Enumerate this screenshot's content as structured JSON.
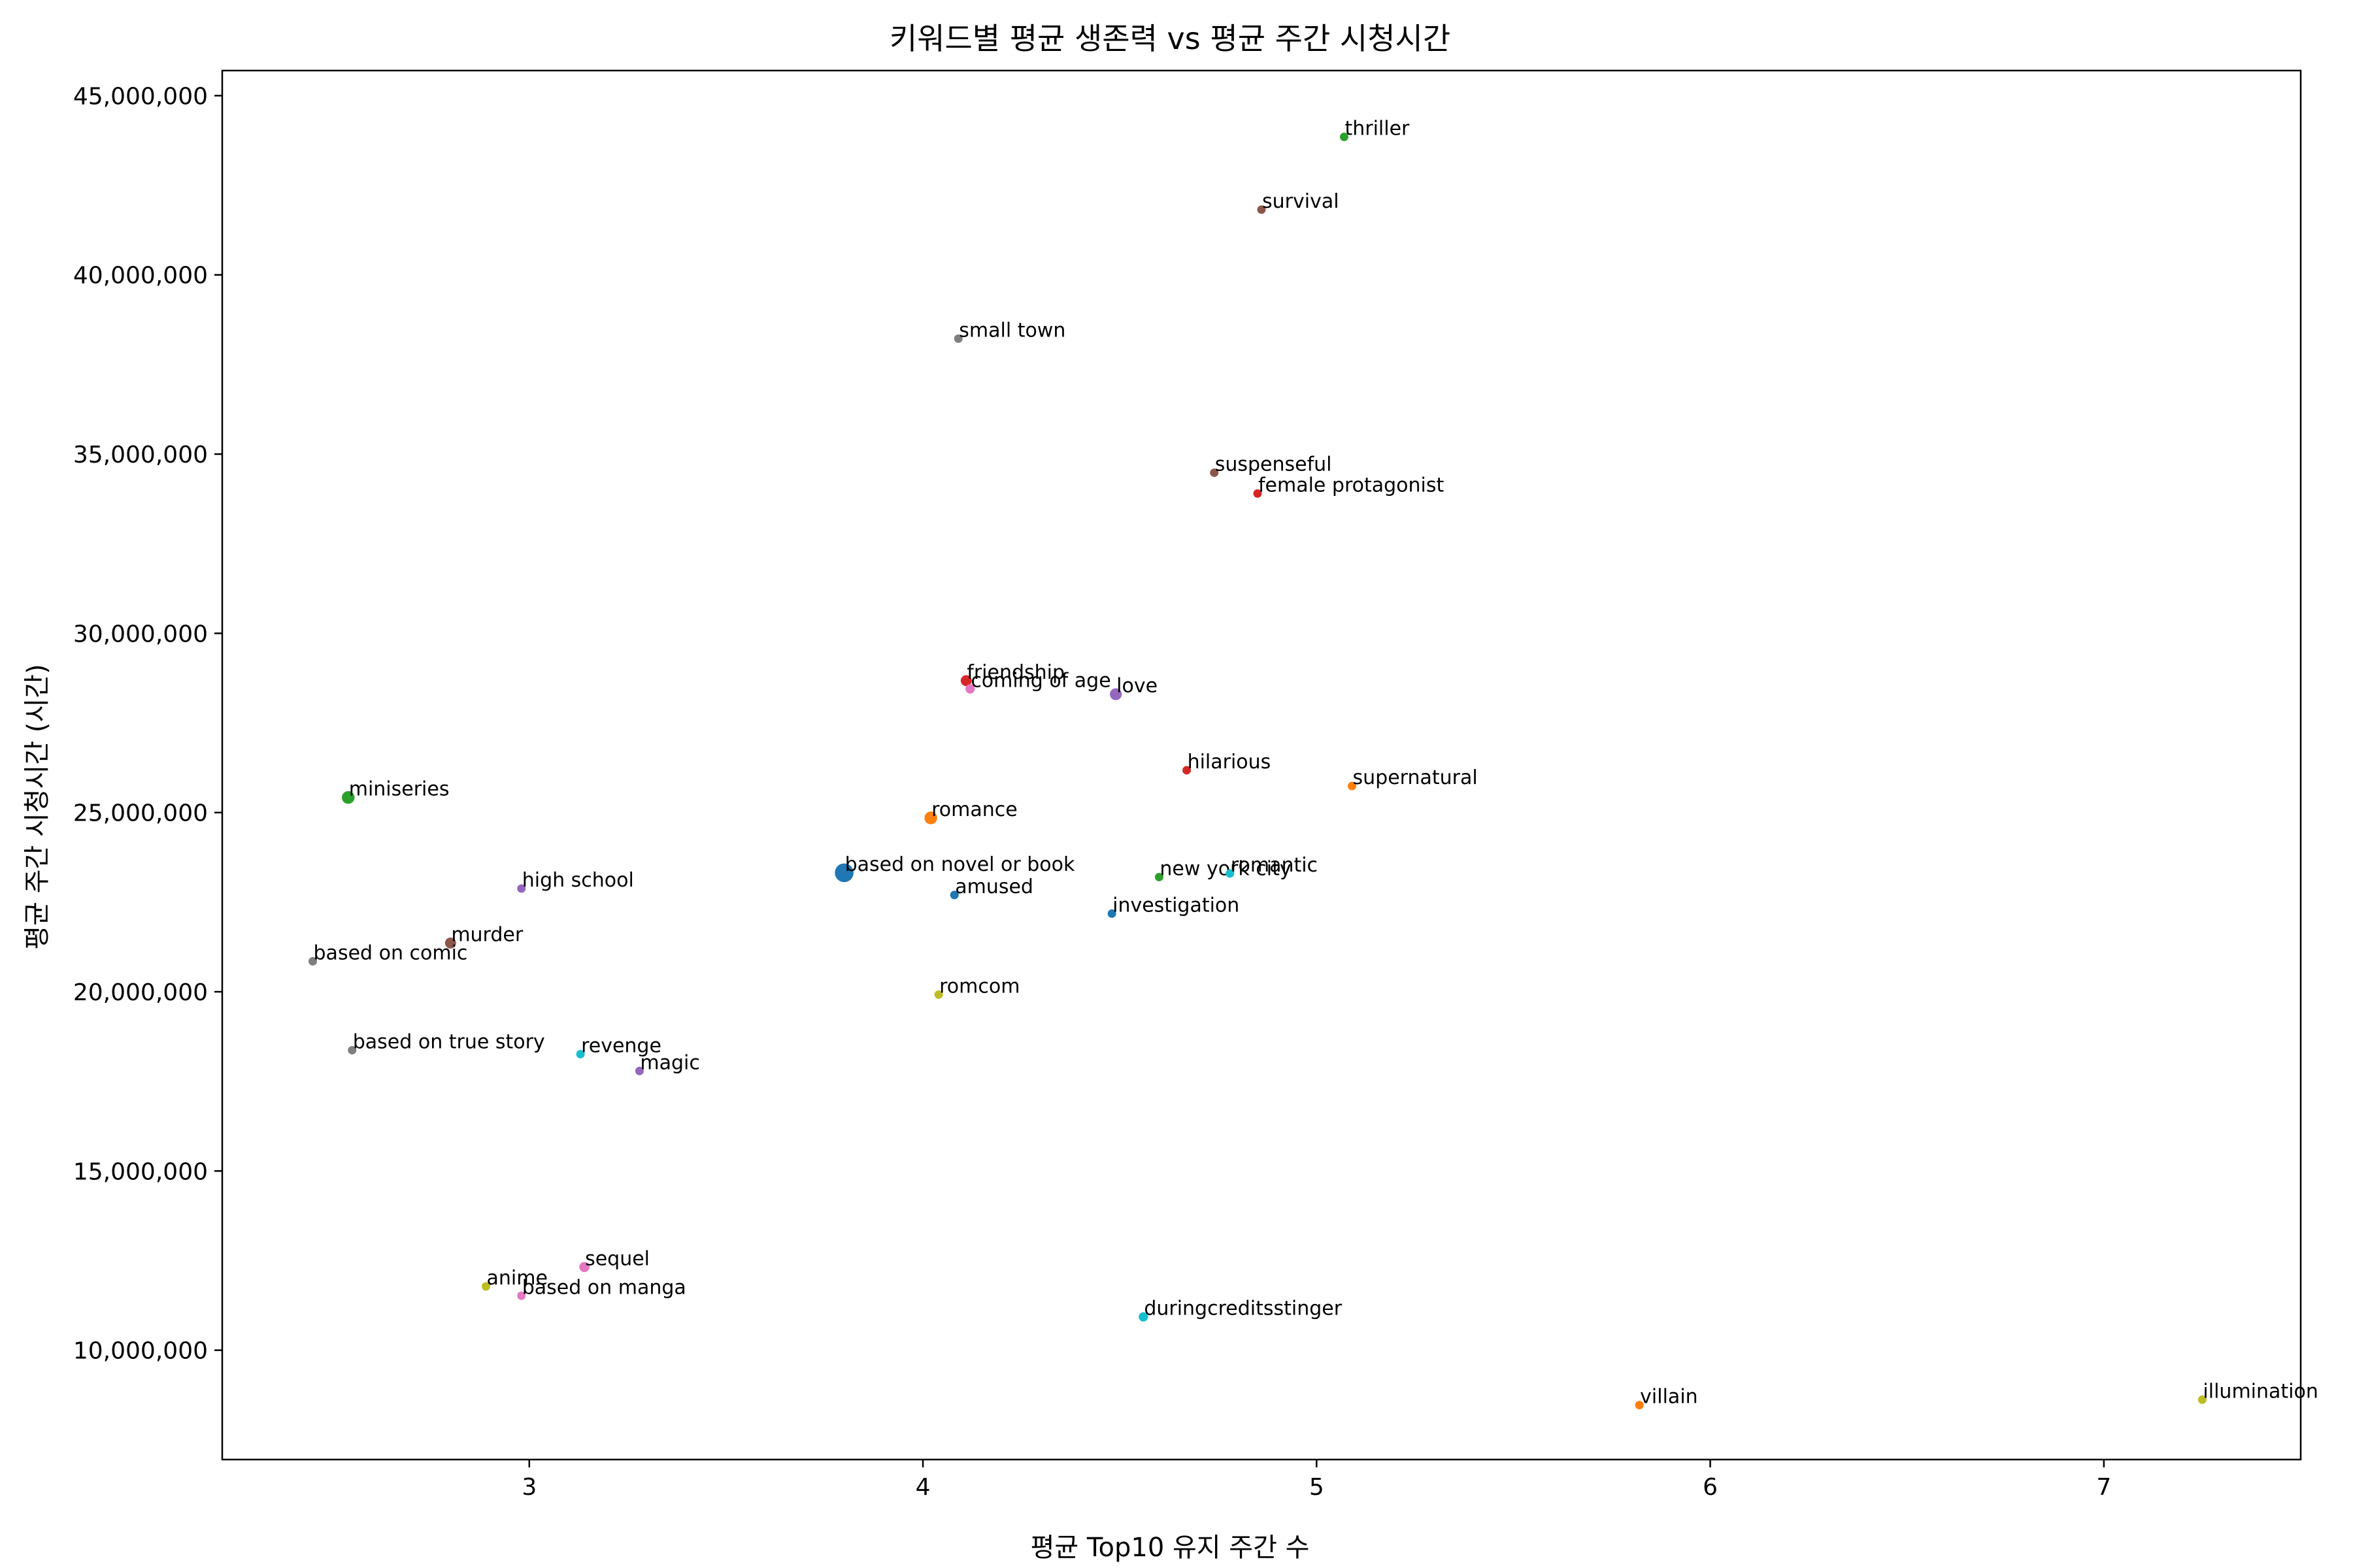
{
  "chart_data": {
    "type": "scatter",
    "title": "키워드별 평균 생존력 vs 평균 주간 시청시간",
    "xlabel": "평균 Top10 유지 주간 수",
    "ylabel": "평균 주간 시청시간 (시간)",
    "xlim": [
      2.22,
      7.5
    ],
    "ylim": [
      6950000,
      45700000
    ],
    "xticks": [
      3,
      4,
      5,
      6,
      7
    ],
    "xtick_labels": [
      "3",
      "4",
      "5",
      "6",
      "7"
    ],
    "yticks": [
      10000000,
      15000000,
      20000000,
      25000000,
      30000000,
      35000000,
      40000000,
      45000000
    ],
    "ytick_labels": [
      "10,000,000",
      "15,000,000",
      "20,000,000",
      "25,000,000",
      "30,000,000",
      "35,000,000",
      "40,000,000",
      "45,000,000"
    ],
    "grid": false,
    "legend": "none",
    "points": [
      {
        "label": "thriller",
        "x": 5.07,
        "y": 43850000,
        "color": "#2ca02c",
        "size": 1
      },
      {
        "label": "survival",
        "x": 4.86,
        "y": 41820000,
        "color": "#8c564b",
        "size": 1
      },
      {
        "label": "small town",
        "x": 4.09,
        "y": 38220000,
        "color": "#7f7f7f",
        "size": 1
      },
      {
        "label": "suspenseful",
        "x": 4.74,
        "y": 34480000,
        "color": "#8c564b",
        "size": 1
      },
      {
        "label": "female protagonist",
        "x": 4.85,
        "y": 33900000,
        "color": "#d62728",
        "size": 1
      },
      {
        "label": "friendship",
        "x": 4.11,
        "y": 28680000,
        "color": "#d62728",
        "size": 1.3
      },
      {
        "label": "coming of age",
        "x": 4.12,
        "y": 28450000,
        "color": "#e377c2",
        "size": 1.1
      },
      {
        "label": "love",
        "x": 4.49,
        "y": 28300000,
        "color": "#9467bd",
        "size": 1.4
      },
      {
        "label": "hilarious",
        "x": 4.67,
        "y": 26180000,
        "color": "#d62728",
        "size": 1
      },
      {
        "label": "supernatural",
        "x": 5.09,
        "y": 25740000,
        "color": "#ff7f0e",
        "size": 1
      },
      {
        "label": "miniseries",
        "x": 2.54,
        "y": 25420000,
        "color": "#2ca02c",
        "size": 1.5
      },
      {
        "label": "romance",
        "x": 4.02,
        "y": 24850000,
        "color": "#ff7f0e",
        "size": 1.5
      },
      {
        "label": "based on novel or book",
        "x": 3.8,
        "y": 23320000,
        "color": "#1f77b4",
        "size": 2.2
      },
      {
        "label": "new york city",
        "x": 4.6,
        "y": 23200000,
        "color": "#2ca02c",
        "size": 1
      },
      {
        "label": "romantic",
        "x": 4.78,
        "y": 23300000,
        "color": "#17becf",
        "size": 1
      },
      {
        "label": "high school",
        "x": 2.98,
        "y": 22880000,
        "color": "#9467bd",
        "size": 1
      },
      {
        "label": "amused",
        "x": 4.08,
        "y": 22700000,
        "color": "#1f77b4",
        "size": 1
      },
      {
        "label": "investigation",
        "x": 4.48,
        "y": 22180000,
        "color": "#1f77b4",
        "size": 1
      },
      {
        "label": "murder",
        "x": 2.8,
        "y": 21360000,
        "color": "#8c564b",
        "size": 1.3
      },
      {
        "label": "based on comic",
        "x": 2.45,
        "y": 20850000,
        "color": "#7f7f7f",
        "size": 1
      },
      {
        "label": "romcom",
        "x": 4.04,
        "y": 19920000,
        "color": "#bcbd22",
        "size": 1
      },
      {
        "label": "based on true story",
        "x": 2.55,
        "y": 18370000,
        "color": "#7f7f7f",
        "size": 1
      },
      {
        "label": "revenge",
        "x": 3.13,
        "y": 18260000,
        "color": "#17becf",
        "size": 1
      },
      {
        "label": "magic",
        "x": 3.28,
        "y": 17790000,
        "color": "#9467bd",
        "size": 1
      },
      {
        "label": "sequel",
        "x": 3.14,
        "y": 12320000,
        "color": "#e377c2",
        "size": 1.2
      },
      {
        "label": "anime",
        "x": 2.89,
        "y": 11780000,
        "color": "#bcbd22",
        "size": 1
      },
      {
        "label": "based on manga",
        "x": 2.98,
        "y": 11520000,
        "color": "#e377c2",
        "size": 1
      },
      {
        "label": "duringcreditsstinger",
        "x": 4.56,
        "y": 10930000,
        "color": "#17becf",
        "size": 1.1
      },
      {
        "label": "villain",
        "x": 5.82,
        "y": 8470000,
        "color": "#ff7f0e",
        "size": 1
      },
      {
        "label": "illumination",
        "x": 7.25,
        "y": 8620000,
        "color": "#bcbd22",
        "size": 1
      }
    ]
  }
}
